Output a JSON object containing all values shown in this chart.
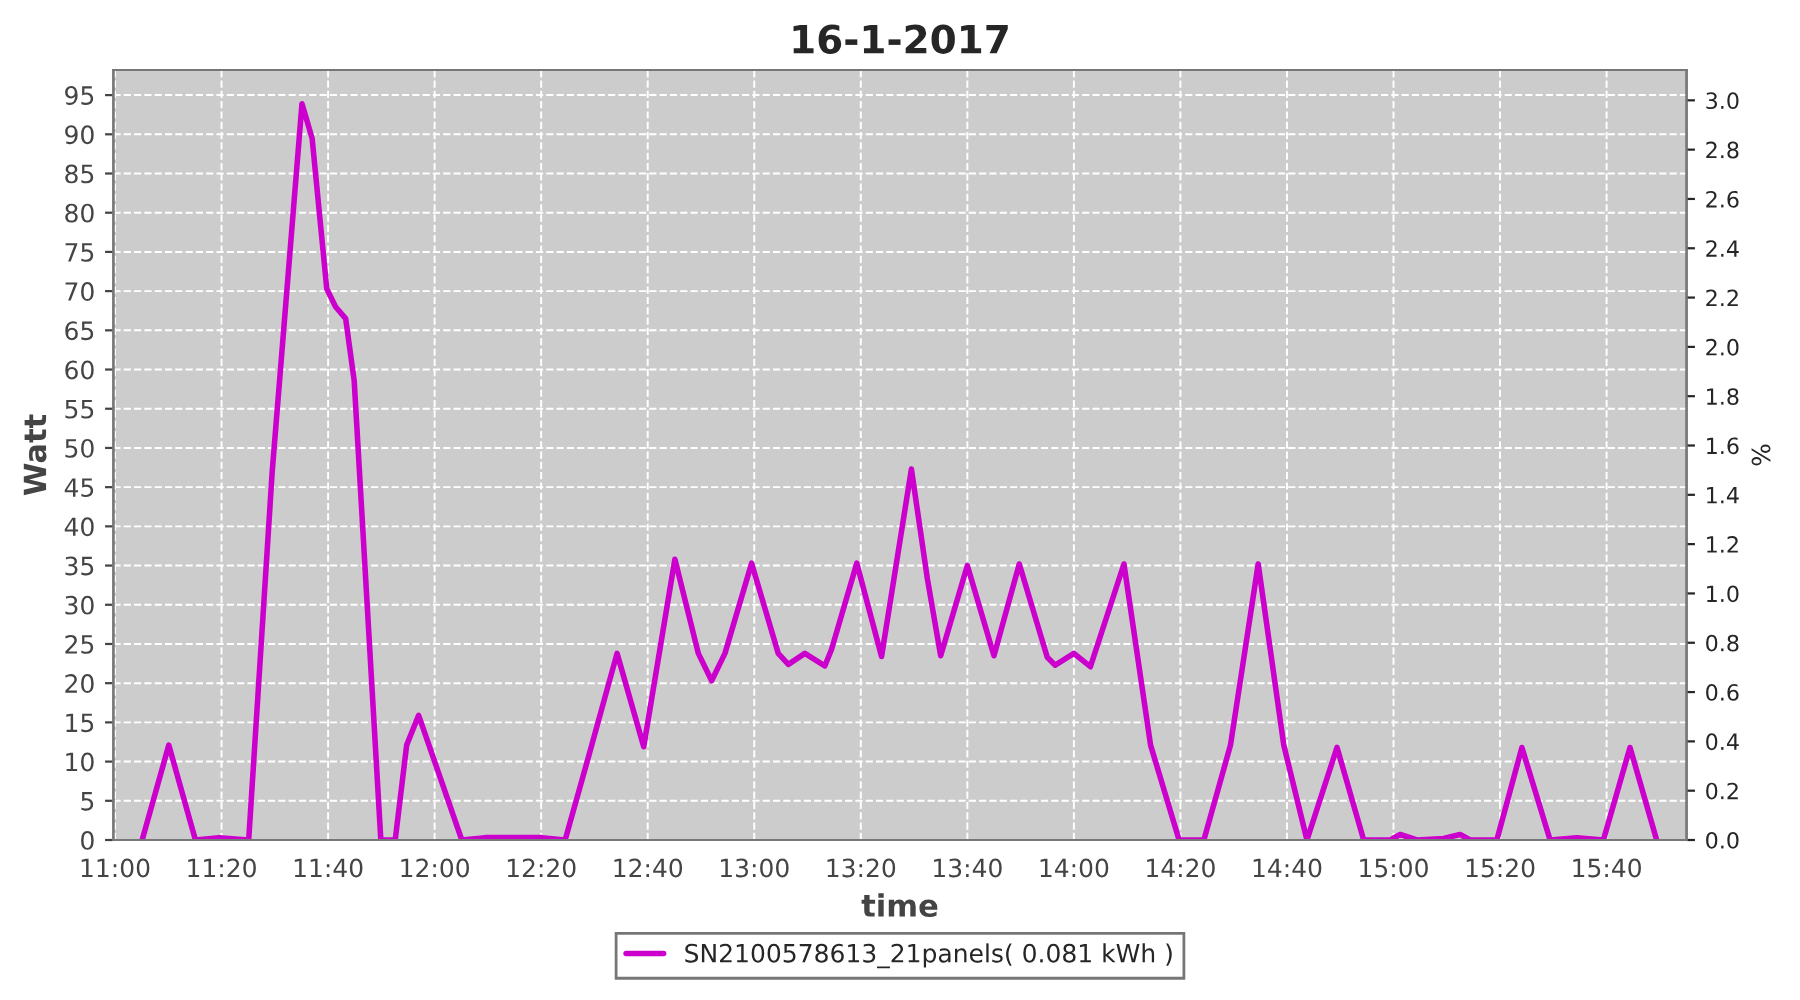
{
  "chart_data": {
    "type": "line",
    "title": "16-1-2017",
    "xlabel": "time",
    "ylabel": "Watt",
    "y2label": "%",
    "xlim": [
      10.995,
      15.917
    ],
    "ylim": [
      0,
      98.2
    ],
    "y2lim": [
      0,
      3.123
    ],
    "xticks": [
      {
        "value": 11.0,
        "label": "11:00"
      },
      {
        "value": 11.3333,
        "label": "11:20"
      },
      {
        "value": 11.6667,
        "label": "11:40"
      },
      {
        "value": 12.0,
        "label": "12:00"
      },
      {
        "value": 12.3333,
        "label": "12:20"
      },
      {
        "value": 12.6667,
        "label": "12:40"
      },
      {
        "value": 13.0,
        "label": "13:00"
      },
      {
        "value": 13.3333,
        "label": "13:20"
      },
      {
        "value": 13.6667,
        "label": "13:40"
      },
      {
        "value": 14.0,
        "label": "14:00"
      },
      {
        "value": 14.3333,
        "label": "14:20"
      },
      {
        "value": 14.6667,
        "label": "14:40"
      },
      {
        "value": 15.0,
        "label": "15:00"
      },
      {
        "value": 15.3333,
        "label": "15:20"
      },
      {
        "value": 15.6667,
        "label": "15:40"
      }
    ],
    "yticks": [
      0,
      5,
      10,
      15,
      20,
      25,
      30,
      35,
      40,
      45,
      50,
      55,
      60,
      65,
      70,
      75,
      80,
      85,
      90,
      95
    ],
    "y2ticks": [
      {
        "value": 0,
        "label": "0.0"
      },
      {
        "value": 0.2,
        "label": "0.2"
      },
      {
        "value": 0.4,
        "label": "0.4"
      },
      {
        "value": 0.6,
        "label": "0.6"
      },
      {
        "value": 0.8,
        "label": "0.8"
      },
      {
        "value": 1.0,
        "label": "1.0"
      },
      {
        "value": 1.2,
        "label": "1.2"
      },
      {
        "value": 1.4,
        "label": "1.4"
      },
      {
        "value": 1.6,
        "label": "1.6"
      },
      {
        "value": 1.8,
        "label": "1.8"
      },
      {
        "value": 2.0,
        "label": "2.0"
      },
      {
        "value": 2.2,
        "label": "2.2"
      },
      {
        "value": 2.4,
        "label": "2.4"
      },
      {
        "value": 2.6,
        "label": "2.6"
      },
      {
        "value": 2.8,
        "label": "2.8"
      },
      {
        "value": 3.0,
        "label": "3.0"
      }
    ],
    "grid": true,
    "legend": "bottom",
    "marker": "none",
    "line_style": "solid",
    "series": [
      {
        "name": "SN2100578613_21panels( 0.081 kWh )",
        "color": "#cc00cc",
        "x": [
          11.085,
          11.1683,
          11.2517,
          11.325,
          11.4183,
          11.4917,
          11.585,
          11.6167,
          11.6625,
          11.69,
          11.7217,
          11.7483,
          11.8317,
          11.8767,
          11.9125,
          11.95,
          12.085,
          12.1583,
          12.335,
          12.4083,
          12.4917,
          12.5708,
          12.6542,
          12.7517,
          12.825,
          12.8667,
          12.9083,
          12.9917,
          13.075,
          13.1067,
          13.1583,
          13.2208,
          13.2417,
          13.3208,
          13.3983,
          13.4917,
          13.5417,
          13.5833,
          13.6667,
          13.75,
          13.8292,
          13.9167,
          13.9417,
          14.0,
          14.0517,
          14.1567,
          14.24,
          14.3292,
          14.4067,
          14.49,
          14.5767,
          14.6567,
          14.7292,
          14.8233,
          14.9067,
          14.99,
          15.0208,
          15.0733,
          15.1567,
          15.2083,
          15.24,
          15.3233,
          15.4017,
          15.49,
          15.5733,
          15.6567,
          15.74,
          15.8233
        ],
        "values": [
          0,
          12.1,
          0,
          0.3,
          0,
          46.9,
          93.9,
          89.5,
          70.3,
          68,
          66.5,
          58.6,
          0,
          0,
          12.1,
          15.9,
          0,
          0.3,
          0.3,
          0,
          12.1,
          23.8,
          11.9,
          35.8,
          23.8,
          20.3,
          23.8,
          35.3,
          23.8,
          22.4,
          23.8,
          22.2,
          24.3,
          35.3,
          23.4,
          47.3,
          33.3,
          23.5,
          35,
          23.5,
          35.2,
          23.3,
          22.3,
          23.8,
          22.1,
          35.2,
          12.1,
          0,
          0,
          12.1,
          35.2,
          12.1,
          0,
          11.8,
          0,
          0,
          0.7,
          0,
          0.2,
          0.7,
          0,
          0,
          11.8,
          0,
          0.3,
          0,
          11.8,
          0
        ]
      }
    ]
  }
}
